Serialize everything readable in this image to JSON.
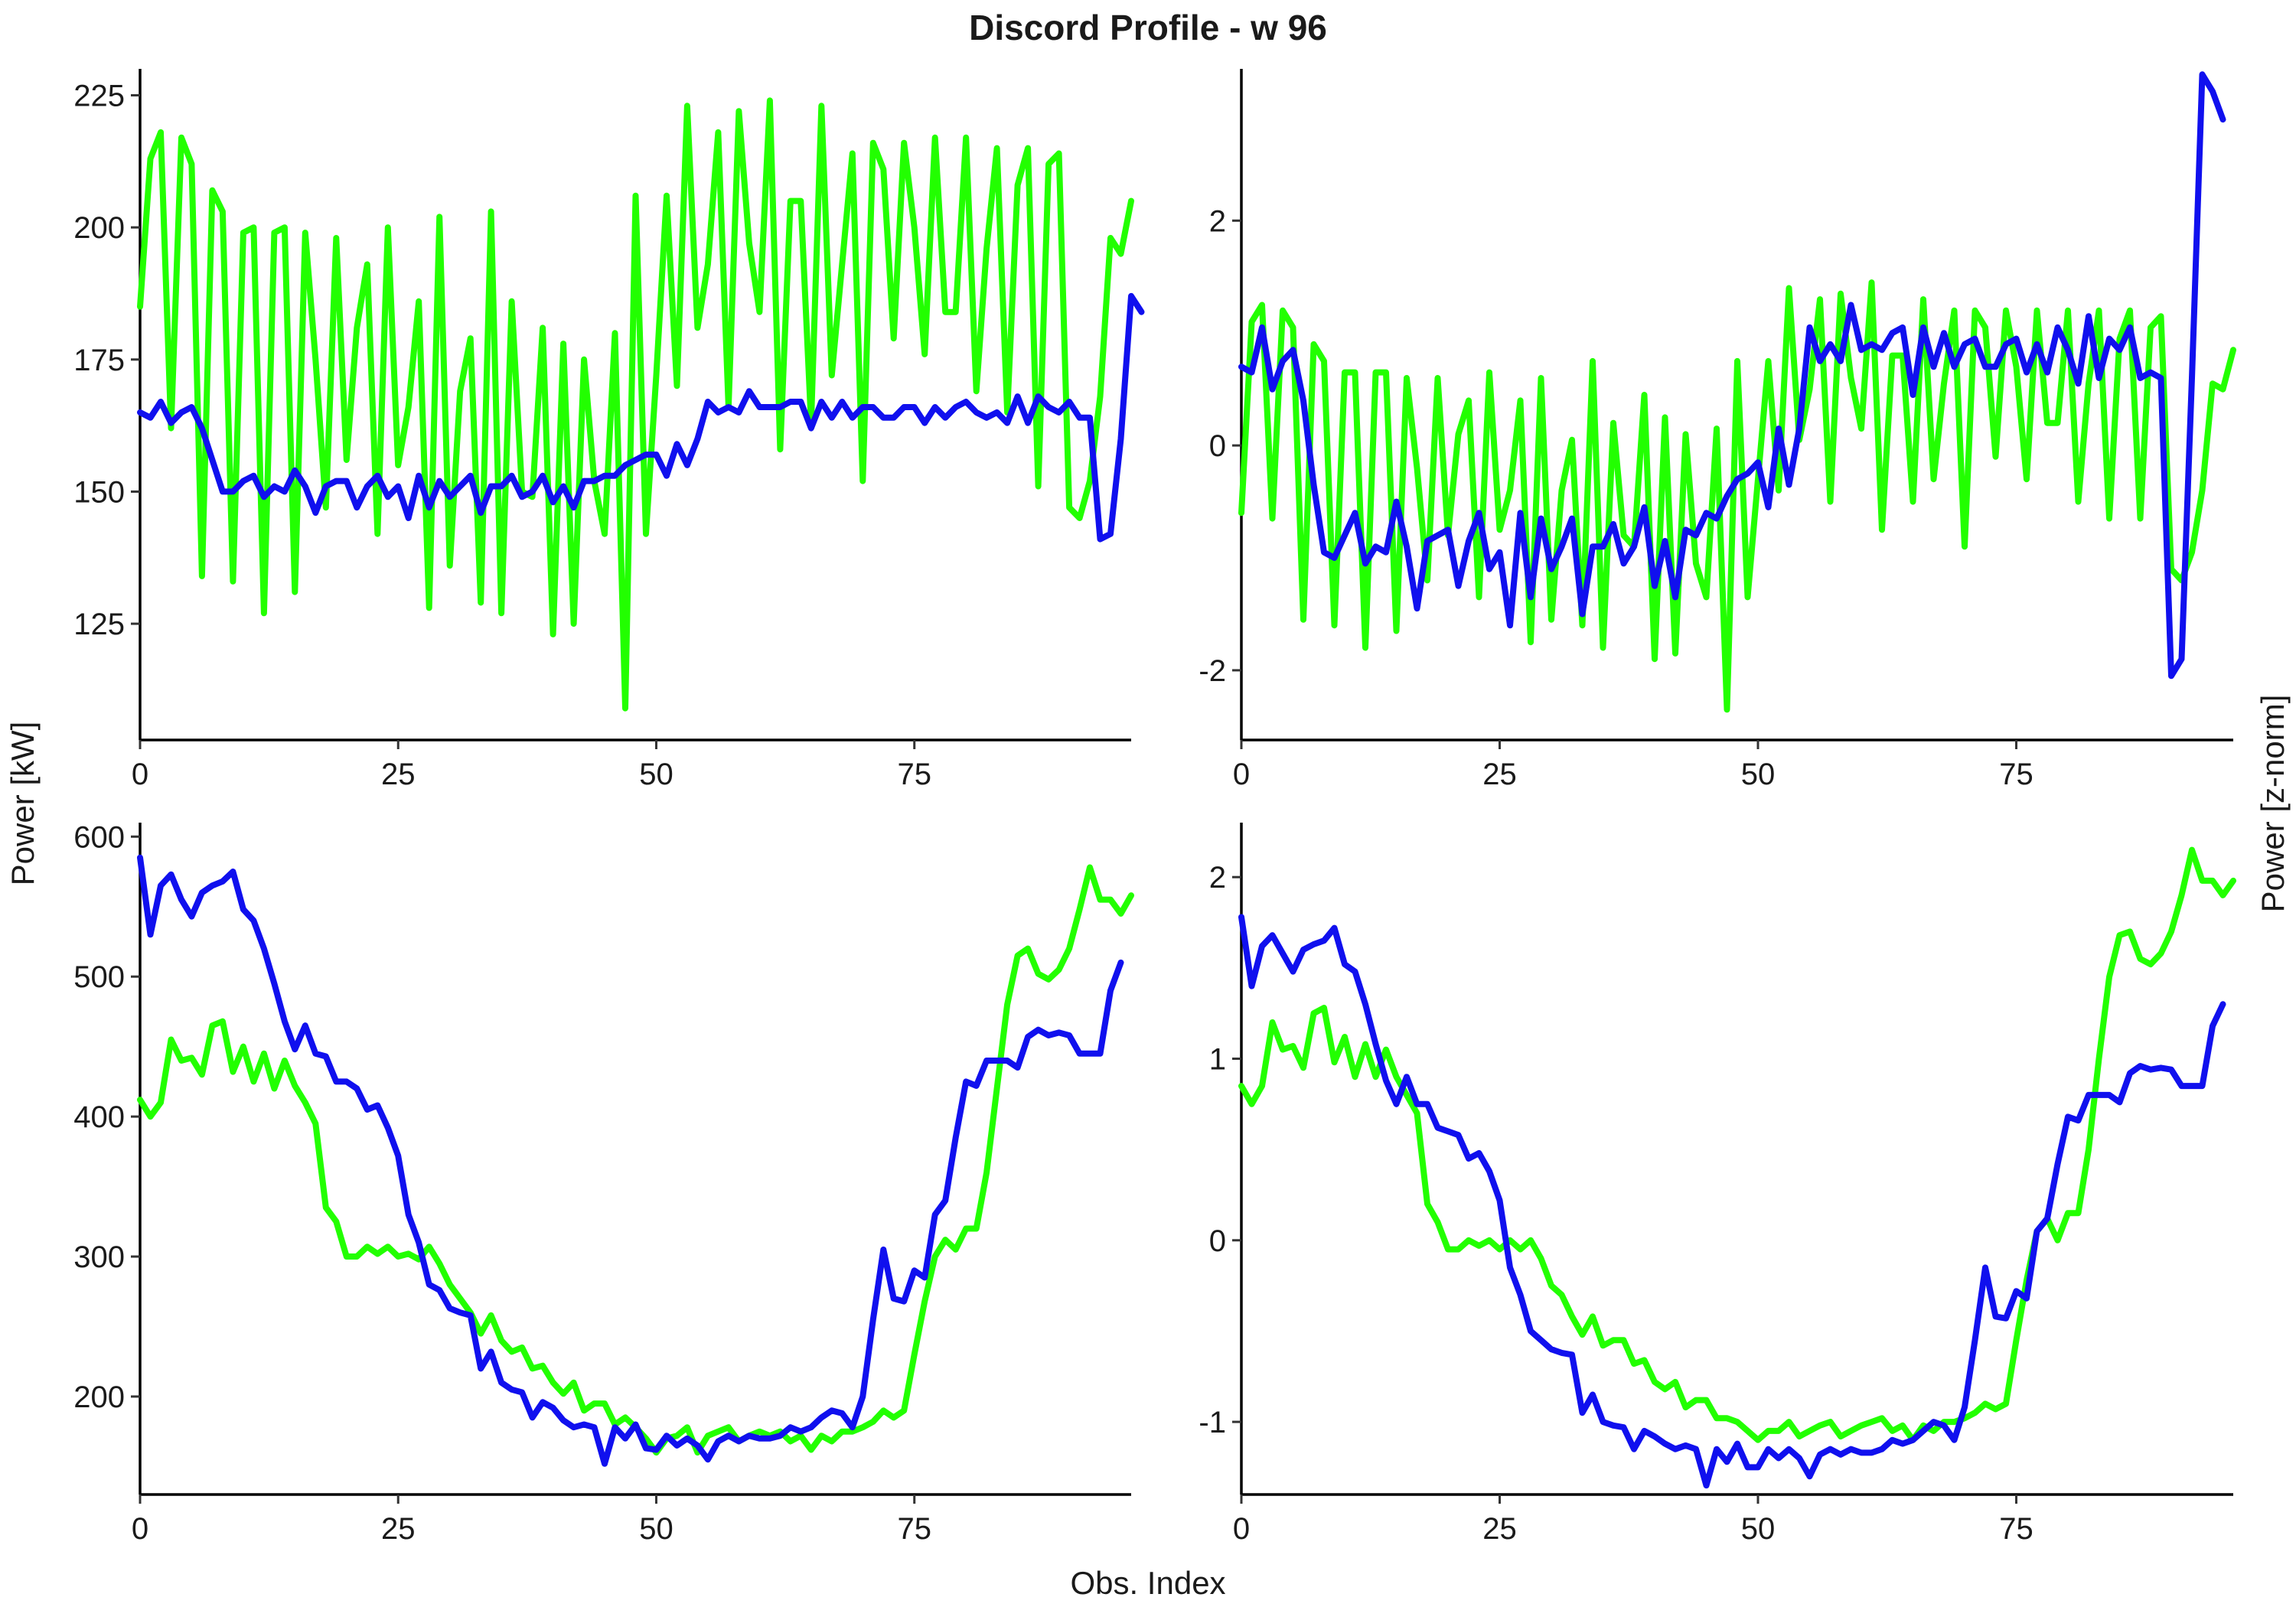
{
  "title": "Discord Profile - w 96",
  "x_axis_title": "Obs. Index",
  "y_axis_title_left": "Power [kW]",
  "y_axis_title_right": "Power [z-norm]",
  "colors": {
    "green": "#22ff00",
    "blue": "#1010ee"
  },
  "chart_data": [
    {
      "type": "line",
      "panel": "top-left",
      "xlim": [
        0,
        96
      ],
      "ylim": [
        103,
        230
      ],
      "xticks": [
        0,
        25,
        50,
        75
      ],
      "yticks": [
        125,
        150,
        175,
        200,
        225
      ],
      "series": [
        {
          "color": "green",
          "values": [
            185,
            213,
            218,
            162,
            217,
            212,
            134,
            207,
            203,
            133,
            199,
            200,
            127,
            199,
            200,
            131,
            199,
            175,
            147,
            198,
            156,
            181,
            193,
            142,
            200,
            155,
            166,
            186,
            128,
            202,
            136,
            169,
            179,
            129,
            203,
            127,
            186,
            150,
            149,
            181,
            123,
            178,
            125,
            175,
            152,
            142,
            180,
            109,
            206,
            142,
            172,
            206,
            170,
            223,
            181,
            193,
            218,
            166,
            222,
            197,
            184,
            224,
            158,
            205,
            205,
            163,
            223,
            172,
            193,
            214,
            152,
            216,
            211,
            179,
            216,
            200,
            176,
            217,
            184,
            184,
            217,
            169,
            196,
            215,
            165,
            208,
            215,
            151,
            212,
            214,
            147,
            145,
            152,
            168,
            198,
            195,
            205
          ]
        },
        {
          "color": "blue",
          "values": [
            165,
            164,
            167,
            163,
            165,
            166,
            162,
            156,
            150,
            150,
            152,
            153,
            149,
            151,
            150,
            154,
            151,
            146,
            151,
            152,
            152,
            147,
            151,
            153,
            149,
            151,
            145,
            153,
            147,
            152,
            149,
            151,
            153,
            146,
            151,
            151,
            153,
            149,
            150,
            153,
            148,
            151,
            147,
            152,
            152,
            153,
            153,
            155,
            156,
            157,
            157,
            153,
            159,
            155,
            160,
            167,
            165,
            166,
            165,
            169,
            166,
            166,
            166,
            167,
            167,
            162,
            167,
            164,
            167,
            164,
            166,
            166,
            164,
            164,
            166,
            166,
            163,
            166,
            164,
            166,
            167,
            165,
            164,
            165,
            163,
            168,
            163,
            168,
            166,
            165,
            167,
            164,
            164,
            141,
            142,
            160,
            187,
            184
          ]
        }
      ]
    },
    {
      "type": "line",
      "panel": "top-right",
      "xlim": [
        0,
        96
      ],
      "ylim": [
        -2.62,
        3.35
      ],
      "xticks": [
        0,
        25,
        50,
        75
      ],
      "yticks": [
        -2,
        0,
        2
      ],
      "series": [
        {
          "color": "green",
          "values": [
            -0.6,
            1.1,
            1.25,
            -0.65,
            1.2,
            1.05,
            -1.55,
            0.9,
            0.75,
            -1.6,
            0.65,
            0.65,
            -1.8,
            0.65,
            0.65,
            -1.65,
            0.6,
            -0.2,
            -1.2,
            0.6,
            -0.8,
            0.1,
            0.4,
            -1.35,
            0.65,
            -0.75,
            -0.4,
            0.4,
            -1.75,
            0.6,
            -1.55,
            -0.4,
            0.05,
            -1.6,
            0.75,
            -1.8,
            0.2,
            -0.8,
            -0.9,
            0.45,
            -1.9,
            0.25,
            -1.85,
            0.1,
            -1.05,
            -1.35,
            0.15,
            -2.35,
            0.75,
            -1.35,
            -0.3,
            0.75,
            -0.4,
            1.4,
            0.05,
            0.5,
            1.3,
            -0.5,
            1.35,
            0.6,
            0.15,
            1.45,
            -0.75,
            0.8,
            0.8,
            -0.5,
            1.3,
            -0.3,
            0.55,
            1.2,
            -0.9,
            1.2,
            1.05,
            -0.1,
            1.2,
            0.7,
            -0.3,
            1.2,
            0.2,
            0.2,
            1.2,
            -0.5,
            0.55,
            1.2,
            -0.65,
            0.95,
            1.2,
            -0.65,
            1.05,
            1.15,
            -1.1,
            -1.2,
            -0.95,
            -0.4,
            0.55,
            0.5,
            0.85
          ]
        },
        {
          "color": "blue",
          "values": [
            0.7,
            0.65,
            1.05,
            0.5,
            0.75,
            0.85,
            0.4,
            -0.35,
            -0.95,
            -1.0,
            -0.8,
            -0.6,
            -1.05,
            -0.9,
            -0.95,
            -0.5,
            -0.9,
            -1.45,
            -0.85,
            -0.8,
            -0.75,
            -1.25,
            -0.85,
            -0.6,
            -1.1,
            -0.95,
            -1.6,
            -0.6,
            -1.35,
            -0.65,
            -1.1,
            -0.9,
            -0.65,
            -1.5,
            -0.9,
            -0.9,
            -0.7,
            -1.05,
            -0.9,
            -0.55,
            -1.25,
            -0.85,
            -1.35,
            -0.75,
            -0.8,
            -0.6,
            -0.65,
            -0.45,
            -0.3,
            -0.25,
            -0.15,
            -0.55,
            0.15,
            -0.35,
            0.15,
            1.05,
            0.75,
            0.9,
            0.75,
            1.25,
            0.85,
            0.9,
            0.85,
            1.0,
            1.05,
            0.45,
            1.05,
            0.7,
            1.0,
            0.7,
            0.9,
            0.95,
            0.7,
            0.7,
            0.9,
            0.95,
            0.65,
            0.9,
            0.65,
            1.05,
            0.85,
            0.55,
            1.15,
            0.6,
            0.95,
            0.85,
            1.05,
            0.6,
            0.65,
            0.6,
            -2.05,
            -1.9,
            0.6,
            3.3,
            3.15,
            2.9
          ]
        }
      ]
    },
    {
      "type": "line",
      "panel": "bottom-left",
      "xlim": [
        0,
        96
      ],
      "ylim": [
        130,
        610
      ],
      "xticks": [
        0,
        25,
        50,
        75
      ],
      "yticks": [
        200,
        300,
        400,
        500,
        600
      ],
      "series": [
        {
          "color": "green",
          "values": [
            412,
            400,
            410,
            455,
            440,
            442,
            430,
            465,
            468,
            432,
            450,
            425,
            445,
            420,
            440,
            422,
            410,
            395,
            335,
            325,
            300,
            300,
            307,
            302,
            307,
            300,
            302,
            298,
            307,
            295,
            280,
            270,
            260,
            245,
            258,
            240,
            232,
            235,
            220,
            222,
            210,
            202,
            210,
            190,
            195,
            195,
            180,
            185,
            178,
            170,
            160,
            170,
            172,
            178,
            160,
            172,
            175,
            178,
            168,
            172,
            175,
            172,
            175,
            168,
            172,
            162,
            172,
            168,
            175,
            175,
            178,
            182,
            190,
            185,
            190,
            230,
            268,
            300,
            312,
            305,
            320,
            320,
            360,
            420,
            480,
            515,
            520,
            502,
            498,
            505,
            520,
            548,
            578,
            555,
            555,
            545,
            558
          ]
        },
        {
          "color": "blue",
          "values": [
            585,
            530,
            565,
            573,
            555,
            543,
            560,
            565,
            568,
            575,
            548,
            540,
            520,
            495,
            468,
            448,
            465,
            445,
            443,
            425,
            425,
            420,
            405,
            408,
            392,
            372,
            330,
            310,
            280,
            276,
            263,
            260,
            258,
            220,
            232,
            210,
            205,
            203,
            185,
            196,
            192,
            183,
            178,
            180,
            178,
            152,
            178,
            170,
            180,
            163,
            162,
            172,
            165,
            170,
            165,
            155,
            168,
            172,
            168,
            172,
            170,
            170,
            172,
            178,
            175,
            178,
            185,
            190,
            188,
            178,
            200,
            255,
            305,
            270,
            268,
            290,
            285,
            330,
            340,
            385,
            425,
            422,
            440,
            440,
            440,
            435,
            457,
            462,
            458,
            460,
            458,
            445,
            445,
            445,
            490,
            510
          ]
        }
      ]
    },
    {
      "type": "line",
      "panel": "bottom-right",
      "xlim": [
        0,
        96
      ],
      "ylim": [
        -1.4,
        2.3
      ],
      "xticks": [
        0,
        25,
        50,
        75
      ],
      "yticks": [
        -1,
        0,
        1,
        2
      ],
      "series": [
        {
          "color": "green",
          "values": [
            0.85,
            0.75,
            0.85,
            1.2,
            1.05,
            1.07,
            0.95,
            1.25,
            1.28,
            0.98,
            1.12,
            0.9,
            1.08,
            0.9,
            1.05,
            0.9,
            0.8,
            0.7,
            0.2,
            0.1,
            -0.05,
            -0.05,
            0.0,
            -0.03,
            0.0,
            -0.05,
            0.0,
            -0.05,
            0.0,
            -0.1,
            -0.25,
            -0.3,
            -0.42,
            -0.52,
            -0.42,
            -0.58,
            -0.55,
            -0.55,
            -0.68,
            -0.66,
            -0.78,
            -0.82,
            -0.78,
            -0.92,
            -0.88,
            -0.88,
            -0.98,
            -0.98,
            -1.0,
            -1.05,
            -1.1,
            -1.05,
            -1.05,
            -1.0,
            -1.08,
            -1.05,
            -1.02,
            -1.0,
            -1.08,
            -1.05,
            -1.02,
            -1.0,
            -0.98,
            -1.05,
            -1.02,
            -1.1,
            -1.02,
            -1.05,
            -1.0,
            -1.0,
            -0.98,
            -0.95,
            -0.9,
            -0.93,
            -0.9,
            -0.55,
            -0.22,
            0.05,
            0.12,
            0.0,
            0.15,
            0.15,
            0.5,
            1.0,
            1.45,
            1.68,
            1.7,
            1.55,
            1.52,
            1.58,
            1.7,
            1.9,
            2.15,
            1.98,
            1.98,
            1.9,
            1.98
          ]
        },
        {
          "color": "blue",
          "values": [
            1.78,
            1.4,
            1.62,
            1.68,
            1.58,
            1.48,
            1.6,
            1.63,
            1.65,
            1.72,
            1.52,
            1.48,
            1.3,
            1.08,
            0.88,
            0.75,
            0.9,
            0.75,
            0.75,
            0.62,
            0.6,
            0.58,
            0.45,
            0.48,
            0.38,
            0.22,
            -0.15,
            -0.3,
            -0.5,
            -0.55,
            -0.6,
            -0.62,
            -0.63,
            -0.95,
            -0.85,
            -1.0,
            -1.02,
            -1.03,
            -1.15,
            -1.05,
            -1.08,
            -1.12,
            -1.15,
            -1.13,
            -1.15,
            -1.35,
            -1.15,
            -1.22,
            -1.12,
            -1.25,
            -1.25,
            -1.15,
            -1.2,
            -1.15,
            -1.2,
            -1.3,
            -1.18,
            -1.15,
            -1.18,
            -1.15,
            -1.17,
            -1.17,
            -1.15,
            -1.1,
            -1.12,
            -1.1,
            -1.05,
            -1.0,
            -1.02,
            -1.1,
            -0.92,
            -0.55,
            -0.15,
            -0.42,
            -0.43,
            -0.28,
            -0.32,
            0.05,
            0.12,
            0.42,
            0.68,
            0.66,
            0.8,
            0.8,
            0.8,
            0.76,
            0.92,
            0.96,
            0.94,
            0.95,
            0.94,
            0.85,
            0.85,
            0.85,
            1.18,
            1.3
          ]
        }
      ]
    }
  ]
}
